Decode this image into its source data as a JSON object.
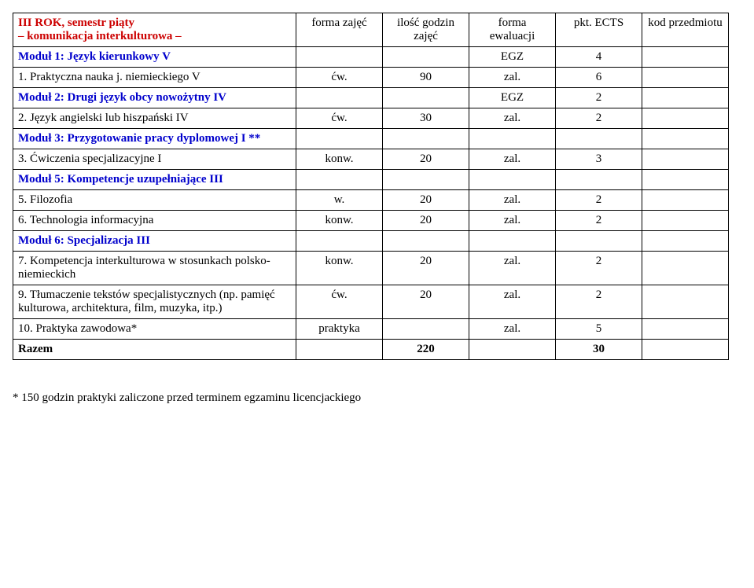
{
  "header": {
    "title_line1": "III ROK, semestr piąty",
    "title_line2": "– komunikacja interkulturowa –",
    "col2": "forma zajęć",
    "col3": "ilość godzin zajęć",
    "col4": "forma ewaluacji",
    "col5": "pkt. ECTS",
    "col6": "kod przedmiotu"
  },
  "rows": {
    "m1": {
      "c1": "Moduł 1: Język kierunkowy V",
      "c4": "EGZ",
      "c5": "4"
    },
    "r1": {
      "c1": "1. Praktyczna nauka j. niemieckiego V",
      "c2": "ćw.",
      "c3": "90",
      "c4": "zal.",
      "c5": "6"
    },
    "m2": {
      "c1": "Moduł 2: Drugi język obcy nowożytny IV",
      "c4": "EGZ",
      "c5": "2"
    },
    "r2": {
      "c1": "2. Język angielski lub hiszpański IV",
      "c2": "ćw.",
      "c3": "30",
      "c4": "zal.",
      "c5": "2"
    },
    "m3": {
      "c1": "Moduł 3: Przygotowanie pracy dyplomowej I **"
    },
    "r3": {
      "c1": "3. Ćwiczenia specjalizacyjne I",
      "c2": "konw.",
      "c3": "20",
      "c4": "zal.",
      "c5": "3"
    },
    "m5": {
      "c1": "Moduł 5: Kompetencje uzupełniające III"
    },
    "r5": {
      "c1": "5. Filozofia",
      "c2": "w.",
      "c3": "20",
      "c4": "zal.",
      "c5": "2"
    },
    "r6": {
      "c1": "6. Technologia informacyjna",
      "c2": "konw.",
      "c3": "20",
      "c4": "zal.",
      "c5": "2"
    },
    "m6": {
      "c1": "Moduł 6: Specjalizacja III"
    },
    "r7": {
      "c1": "7. Kompetencja interkulturowa w stosunkach polsko-niemieckich",
      "c2": "konw.",
      "c3": "20",
      "c4": "zal.",
      "c5": "2"
    },
    "r9": {
      "c1": "9. Tłumaczenie tekstów specjalistycznych (np. pamięć kulturowa, architektura, film, muzyka, itp.)",
      "c2": "ćw.",
      "c3": "20",
      "c4": "zal.",
      "c5": "2"
    },
    "r10": {
      "c1": "10. Praktyka zawodowa*",
      "c2": "praktyka",
      "c4": "zal.",
      "c5": "5"
    },
    "sum": {
      "c1": "Razem",
      "c3": "220",
      "c5": "30"
    }
  },
  "footer": "* 150 godzin praktyki zaliczone przed terminem egzaminu licencjackiego"
}
